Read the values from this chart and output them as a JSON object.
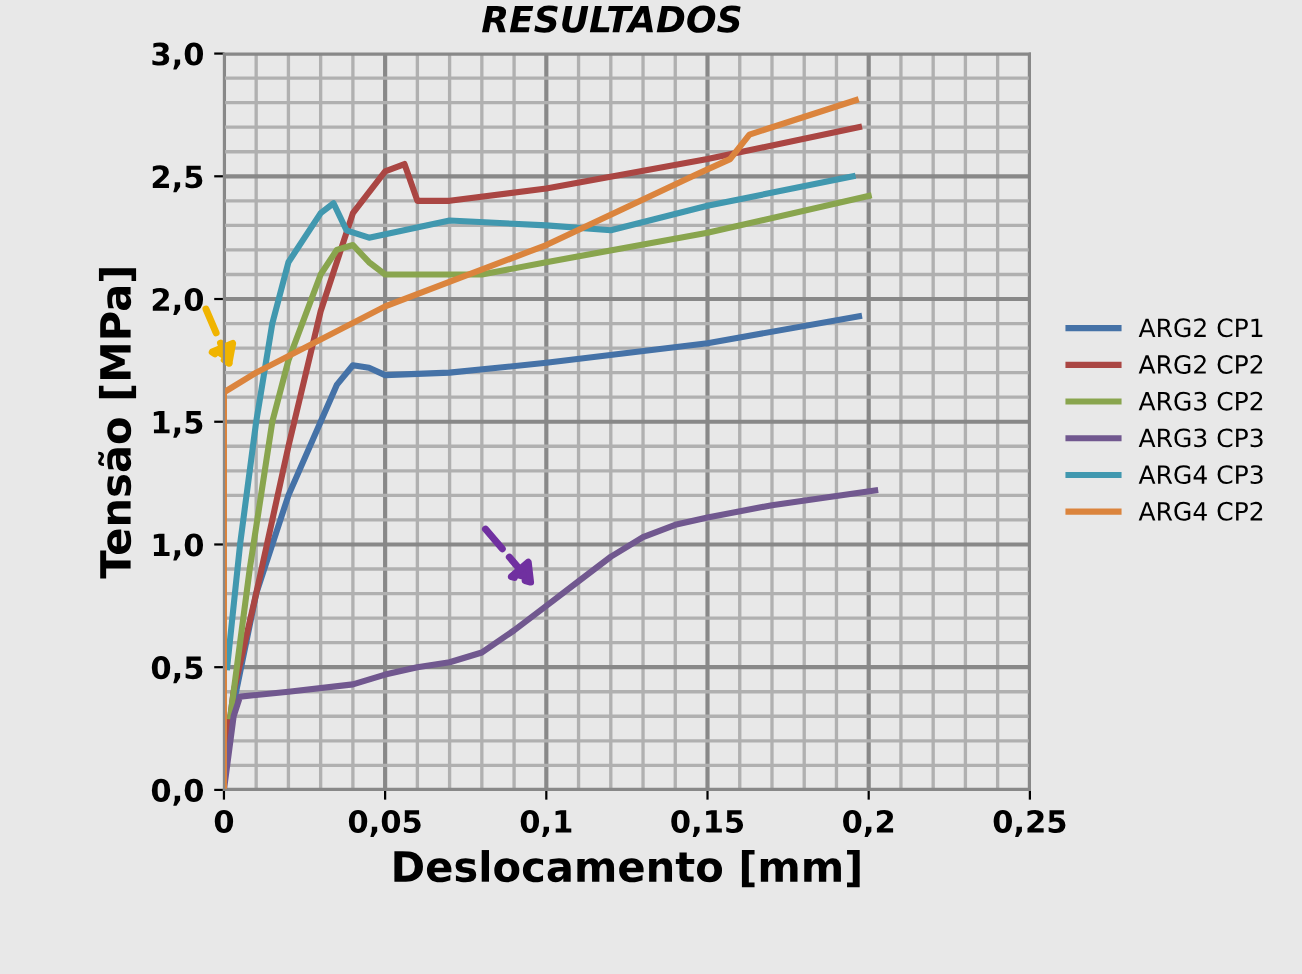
{
  "chart_data": {
    "type": "line",
    "title": "RESULTADOS",
    "xlabel": "Deslocamento [mm]",
    "ylabel": "Tensão [MPa]",
    "xlim": [
      0,
      0.25
    ],
    "ylim": [
      0,
      3.0
    ],
    "xticks": [
      0,
      {
        "value": 0.05,
        "label": "0,05"
      },
      {
        "value": 0.1,
        "label": "0,1"
      },
      {
        "value": 0.15,
        "label": "0,15"
      },
      {
        "value": 0.2,
        "label": "0,2"
      },
      {
        "value": 0.25,
        "label": "0,25"
      }
    ],
    "yticks": [
      {
        "value": 0,
        "label": "0,0"
      },
      {
        "value": 0.5,
        "label": "0,5"
      },
      {
        "value": 1.0,
        "label": "1,0"
      },
      {
        "value": 1.5,
        "label": "1,5"
      },
      {
        "value": 2.0,
        "label": "2,0"
      },
      {
        "value": 2.5,
        "label": "2,5"
      },
      {
        "value": 3.0,
        "label": "3,0"
      }
    ],
    "grid": true,
    "legend": "right",
    "marker": "none",
    "line_style": "solid",
    "series": [
      {
        "name": "ARG2 CP1",
        "color": "#4572a7",
        "x": [
          0.003,
          0.01,
          0.02,
          0.03,
          0.035,
          0.04,
          0.045,
          0.05,
          0.07,
          0.1,
          0.15,
          0.197
        ],
        "values": [
          0.35,
          0.8,
          1.2,
          1.5,
          1.65,
          1.73,
          1.72,
          1.69,
          1.7,
          1.74,
          1.82,
          1.93
        ]
      },
      {
        "name": "ARG2 CP2",
        "color": "#aa4643",
        "x": [
          0.0,
          0.003,
          0.01,
          0.02,
          0.03,
          0.04,
          0.05,
          0.056,
          0.06,
          0.07,
          0.1,
          0.15,
          0.197
        ],
        "values": [
          0.1,
          0.4,
          0.8,
          1.4,
          1.95,
          2.35,
          2.52,
          2.55,
          2.4,
          2.4,
          2.45,
          2.57,
          2.7
        ]
      },
      {
        "name": "ARG3 CP2",
        "color": "#89a54e",
        "x": [
          0.002,
          0.008,
          0.015,
          0.02,
          0.03,
          0.035,
          0.04,
          0.045,
          0.05,
          0.08,
          0.1,
          0.15,
          0.2
        ],
        "values": [
          0.3,
          0.9,
          1.5,
          1.75,
          2.1,
          2.2,
          2.22,
          2.15,
          2.1,
          2.1,
          2.15,
          2.27,
          2.42
        ]
      },
      {
        "name": "ARG3 CP3",
        "color": "#71588f",
        "x": [
          0.0,
          0.003,
          0.005,
          0.02,
          0.04,
          0.05,
          0.06,
          0.07,
          0.08,
          0.09,
          0.1,
          0.11,
          0.12,
          0.13,
          0.14,
          0.15,
          0.17,
          0.202
        ],
        "values": [
          0.0,
          0.3,
          0.38,
          0.4,
          0.43,
          0.47,
          0.5,
          0.52,
          0.56,
          0.65,
          0.75,
          0.85,
          0.95,
          1.03,
          1.08,
          1.11,
          1.16,
          1.22
        ]
      },
      {
        "name": "ARG4 CP3",
        "color": "#4198af",
        "x": [
          0.001,
          0.005,
          0.01,
          0.015,
          0.02,
          0.03,
          0.034,
          0.038,
          0.045,
          0.07,
          0.1,
          0.12,
          0.15,
          0.195
        ],
        "values": [
          0.5,
          1.0,
          1.5,
          1.9,
          2.15,
          2.35,
          2.39,
          2.28,
          2.25,
          2.32,
          2.3,
          2.28,
          2.38,
          2.5
        ]
      },
      {
        "name": "ARG4 CP2",
        "color": "#db843d",
        "x": [
          0.0,
          0.0,
          0.01,
          0.05,
          0.1,
          0.147,
          0.157,
          0.163,
          0.196
        ],
        "values": [
          0.0,
          1.62,
          1.7,
          1.97,
          2.22,
          2.51,
          2.57,
          2.67,
          2.81
        ]
      }
    ]
  }
}
